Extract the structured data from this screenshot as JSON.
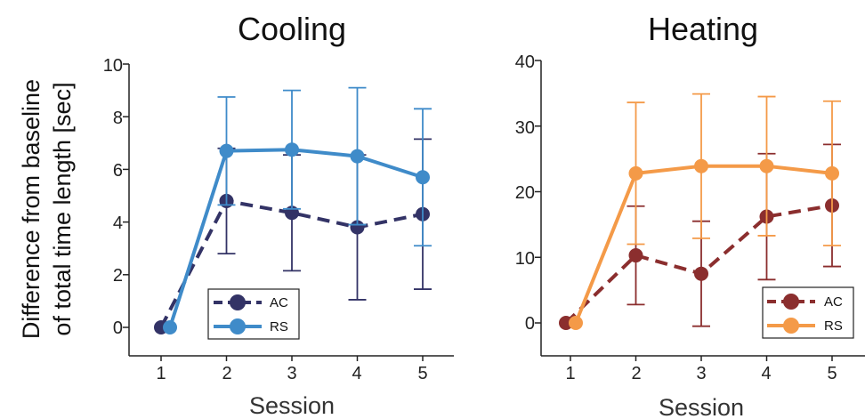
{
  "ylabel_lines": [
    "Difference from baseline",
    "of total time length [sec]"
  ],
  "chart_data": [
    {
      "type": "line",
      "title": "Cooling",
      "xlabel": "Session",
      "ylabel": "Difference from baseline of total time length [sec]",
      "x": [
        1,
        2,
        3,
        4,
        5
      ],
      "x_ticks": [
        "1",
        "2",
        "3",
        "4",
        "5"
      ],
      "xlim": [
        0.5,
        5.5
      ],
      "ylim": [
        -1.2,
        10
      ],
      "y_ticks": [
        "0",
        "2",
        "4",
        "6",
        "8",
        "10"
      ],
      "legend_position": "bottom-right",
      "series": [
        {
          "name": "AC",
          "color": "#333366",
          "dashed": true,
          "values": [
            0.0,
            4.8,
            4.35,
            3.8,
            4.3
          ],
          "error": [
            0.0,
            2.0,
            2.2,
            2.75,
            2.85
          ]
        },
        {
          "name": "RS",
          "color": "#3f8bc9",
          "dashed": false,
          "values": [
            0.0,
            6.7,
            6.75,
            6.5,
            5.7
          ],
          "error": [
            0.0,
            2.05,
            2.25,
            2.6,
            2.6
          ]
        }
      ]
    },
    {
      "type": "line",
      "title": "Heating",
      "xlabel": "Session",
      "ylabel": "",
      "x": [
        1,
        2,
        3,
        4,
        5
      ],
      "x_ticks": [
        "1",
        "2",
        "3",
        "4",
        "5"
      ],
      "xlim": [
        0.5,
        5.5
      ],
      "ylim": [
        -5,
        40
      ],
      "y_ticks": [
        "0",
        "10",
        "20",
        "30",
        "40"
      ],
      "legend_position": "bottom-right",
      "series": [
        {
          "name": "AC",
          "color": "#8b2e2e",
          "dashed": true,
          "values": [
            0.0,
            10.3,
            7.5,
            16.2,
            17.9
          ],
          "error": [
            0.0,
            7.5,
            8.0,
            9.6,
            9.3
          ]
        },
        {
          "name": "RS",
          "color": "#f49a48",
          "dashed": false,
          "values": [
            0.0,
            22.8,
            23.9,
            23.9,
            22.8
          ],
          "error": [
            0.0,
            10.8,
            11.0,
            10.6,
            11.0
          ]
        }
      ]
    }
  ]
}
